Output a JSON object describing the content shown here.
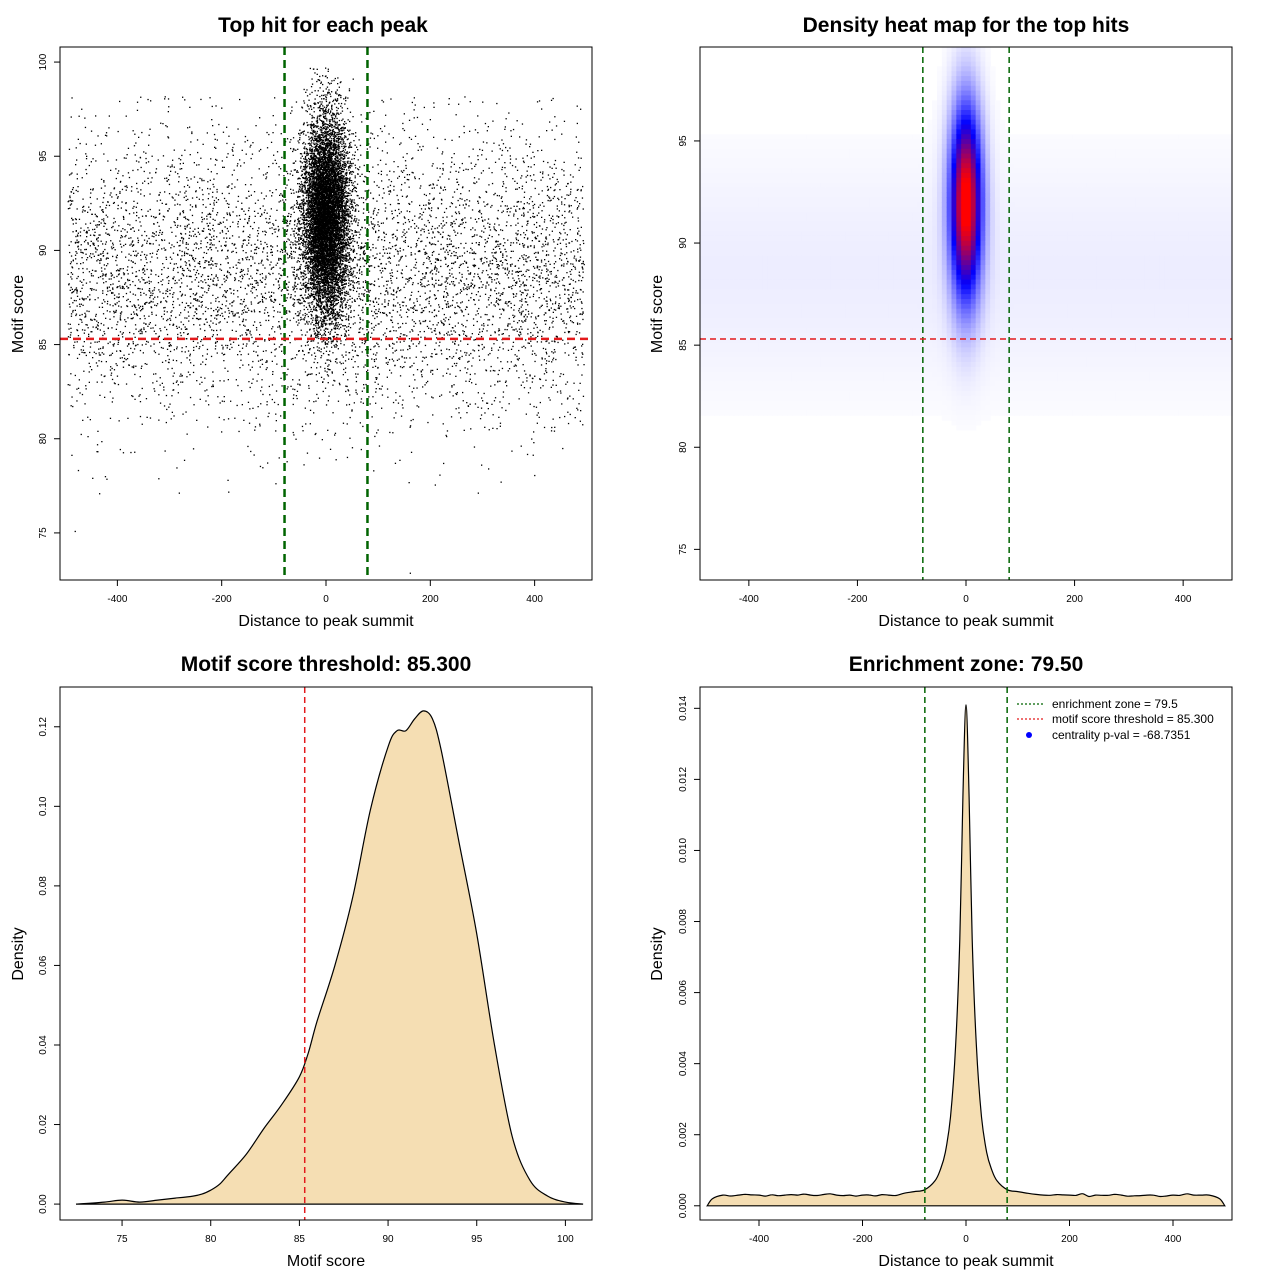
{
  "chart_data": [
    {
      "type": "scatter",
      "title": "Top hit for each peak",
      "xlabel": "Distance to peak summit",
      "ylabel": "Motif score",
      "xlim": [
        -510,
        510
      ],
      "ylim": [
        72.5,
        100.8
      ],
      "xticks": [
        -400,
        -200,
        0,
        200,
        400
      ],
      "yticks": [
        75,
        80,
        85,
        90,
        95,
        100
      ],
      "vlines": [
        -79.5,
        79.5
      ],
      "hline": 85.3,
      "vline_color": "#006400",
      "hline_color": "#e31a1c",
      "point_color": "#000000",
      "generator": {
        "background_points": 6200,
        "background_x_range": [
          -495,
          495
        ],
        "background_y_mean": 88.8,
        "background_y_sd": 3.8,
        "central_points": 9000,
        "central_x_sd": 22,
        "central_y_mean": 91.8,
        "central_y_sd": 2.6
      }
    },
    {
      "type": "heatmap",
      "title": "Density heat map for the top hits",
      "xlabel": "Distance to peak summit",
      "ylabel": "Motif score",
      "xlim": [
        -490,
        490
      ],
      "ylim": [
        73.5,
        99.6
      ],
      "xticks": [
        -400,
        -200,
        0,
        200,
        400
      ],
      "yticks": [
        75,
        80,
        85,
        90,
        95
      ],
      "vlines": [
        -79.5,
        79.5
      ],
      "hline": 85.3,
      "palette": [
        "#ffffff",
        "#0000ff",
        "#ff0000"
      ],
      "peak": {
        "x": 0,
        "y": 92,
        "x_sd": 20,
        "y_sd": 3.2
      }
    },
    {
      "type": "area",
      "title": "Motif score threshold: 85.300",
      "xlabel": "Motif score",
      "ylabel": "Density",
      "xlim": [
        71.5,
        101.5
      ],
      "ylim": [
        -0.004,
        0.13
      ],
      "xticks": [
        75,
        80,
        85,
        90,
        95,
        100
      ],
      "yticks": [
        0.0,
        0.02,
        0.04,
        0.06,
        0.08,
        0.1,
        0.12
      ],
      "ytick_labels": [
        "0.00",
        "0.02",
        "0.04",
        "0.06",
        "0.08",
        "0.10",
        "0.12"
      ],
      "vline": 85.3,
      "fill": "#f5deb3",
      "x": [
        72.4,
        74,
        75,
        76,
        77,
        78,
        79,
        79.5,
        80,
        80.5,
        81,
        82,
        83,
        84,
        85,
        85.5,
        86,
        87,
        88,
        89,
        90,
        90.5,
        91,
        91.5,
        92,
        92.5,
        93,
        94,
        95,
        96,
        97,
        98,
        99,
        100,
        101
      ],
      "y": [
        0.0,
        0.0005,
        0.001,
        0.0005,
        0.001,
        0.0015,
        0.002,
        0.0025,
        0.0035,
        0.005,
        0.0075,
        0.0125,
        0.019,
        0.025,
        0.032,
        0.038,
        0.046,
        0.06,
        0.077,
        0.099,
        0.115,
        0.119,
        0.119,
        0.122,
        0.124,
        0.122,
        0.114,
        0.091,
        0.068,
        0.04,
        0.017,
        0.006,
        0.002,
        0.0005,
        0.0
      ]
    },
    {
      "type": "area",
      "title": "Enrichment zone: 79.50",
      "xlabel": "Distance to peak summit",
      "ylabel": "Density",
      "xlim": [
        -514,
        514
      ],
      "ylim": [
        -0.0004,
        0.0146
      ],
      "xticks": [
        -400,
        -200,
        0,
        200,
        400
      ],
      "yticks": [
        0.0,
        0.002,
        0.004,
        0.006,
        0.008,
        0.01,
        0.012,
        0.014
      ],
      "ytick_labels": [
        "0.000",
        "0.002",
        "0.004",
        "0.006",
        "0.008",
        "0.010",
        "0.012",
        "0.014"
      ],
      "vlines": [
        -79.5,
        79.5
      ],
      "fill": "#f5deb3",
      "x": [
        -500,
        -490,
        -470,
        -440,
        -400,
        -350,
        -300,
        -250,
        -200,
        -150,
        -120,
        -100,
        -80,
        -60,
        -50,
        -40,
        -30,
        -20,
        -12,
        -6,
        0,
        6,
        12,
        20,
        30,
        40,
        50,
        60,
        80,
        100,
        120,
        150,
        200,
        250,
        300,
        350,
        400,
        440,
        470,
        490,
        500
      ],
      "y": [
        0.0,
        0.0002,
        0.0003,
        0.0003,
        0.0003,
        0.0003,
        0.0003,
        0.0003,
        0.0003,
        0.0003,
        0.00035,
        0.0004,
        0.00045,
        0.0007,
        0.001,
        0.0015,
        0.0025,
        0.0045,
        0.0075,
        0.0115,
        0.0141,
        0.0115,
        0.0075,
        0.0045,
        0.0025,
        0.0015,
        0.001,
        0.0007,
        0.00045,
        0.0004,
        0.00035,
        0.0003,
        0.0003,
        0.0003,
        0.0003,
        0.0003,
        0.0003,
        0.0003,
        0.0003,
        0.0002,
        0.0
      ],
      "legend": {
        "placement": "top-right",
        "entries": [
          {
            "label": "enrichment zone = 79.5",
            "style": "dotted-line",
            "color": "#006400"
          },
          {
            "label": "motif score threshold = 85.300",
            "style": "dotted-line",
            "color": "#e31a1c"
          },
          {
            "label": "centrality p-val = -68.7351",
            "style": "point",
            "color": "#0000ff"
          }
        ]
      }
    }
  ]
}
